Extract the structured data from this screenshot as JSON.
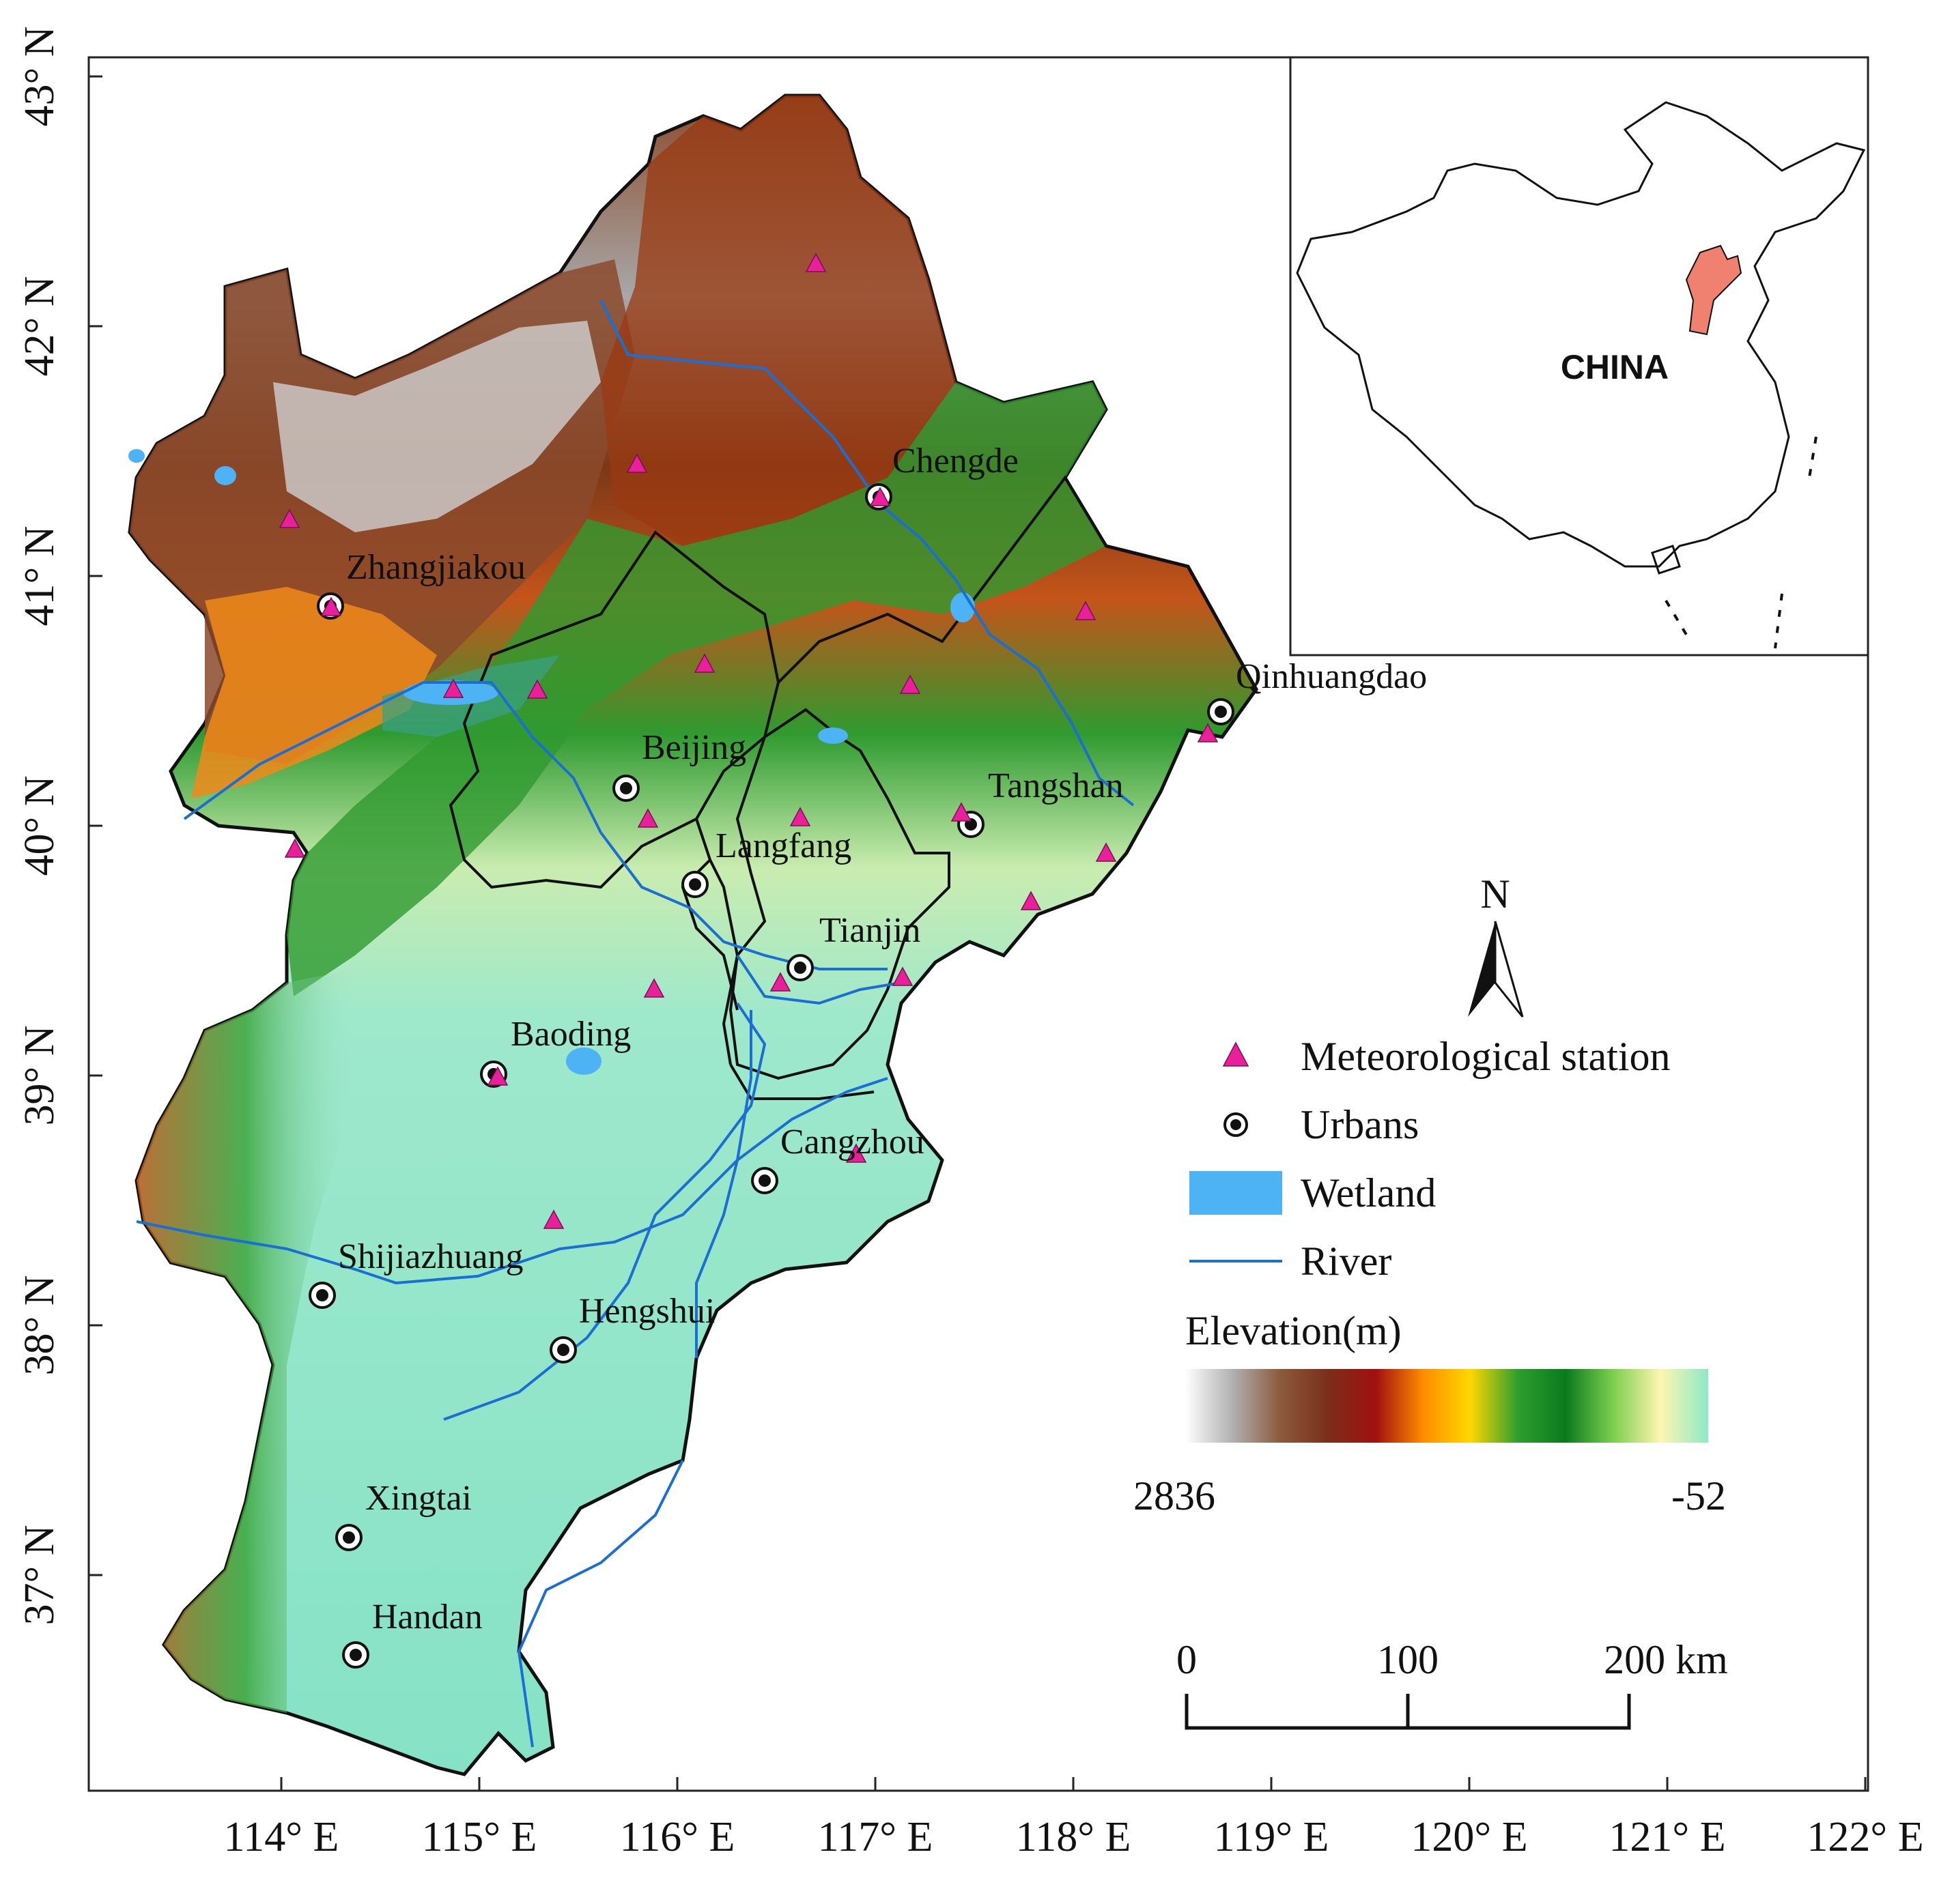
{
  "map": {
    "lon_ticks": [
      "114° E",
      "115° E",
      "116° E",
      "117° E",
      "118° E",
      "119° E",
      "120° E",
      "121° E",
      "122° E"
    ],
    "lat_ticks": [
      "43° N",
      "42° N",
      "41° N",
      "40° N",
      "39° N",
      "38° N",
      "37° N"
    ],
    "cities": [
      {
        "name": "Chengde"
      },
      {
        "name": "Zhangjiakou"
      },
      {
        "name": "Qinhuangdao"
      },
      {
        "name": "Beijing"
      },
      {
        "name": "Tangshan"
      },
      {
        "name": "Langfang"
      },
      {
        "name": "Tianjin"
      },
      {
        "name": "Baoding"
      },
      {
        "name": "Cangzhou"
      },
      {
        "name": "Shijiazhuang"
      },
      {
        "name": "Hengshui"
      },
      {
        "name": "Xingtai"
      },
      {
        "name": "Handan"
      }
    ],
    "stations_count": 23
  },
  "inset": {
    "label": "CHINA",
    "highlight_color": "#f08070"
  },
  "north_arrow": {
    "label": "N"
  },
  "legend": {
    "items": [
      {
        "label": "Meteorological station",
        "symbol": "triangle",
        "color": "#e8209a"
      },
      {
        "label": "Urbans",
        "symbol": "target-circle",
        "color": "#111111"
      },
      {
        "label": "Wetland",
        "symbol": "rectangle",
        "color": "#4db3f5"
      },
      {
        "label": "River",
        "symbol": "line",
        "color": "#1b6fd0"
      }
    ],
    "elevation_title": "Elevation(m)",
    "elevation_max": "2836",
    "elevation_min": "-52",
    "elevation_colors": [
      "#ffffff",
      "#b0b0b0",
      "#8b5a3c",
      "#7a2f1a",
      "#a01010",
      "#ff8c00",
      "#ffd700",
      "#2e9e2e",
      "#0a7a1e",
      "#7ccf4e",
      "#fdf6b0",
      "#8fe8c8"
    ]
  },
  "scale_bar": {
    "labels": [
      "0",
      "100",
      "200 km"
    ]
  }
}
